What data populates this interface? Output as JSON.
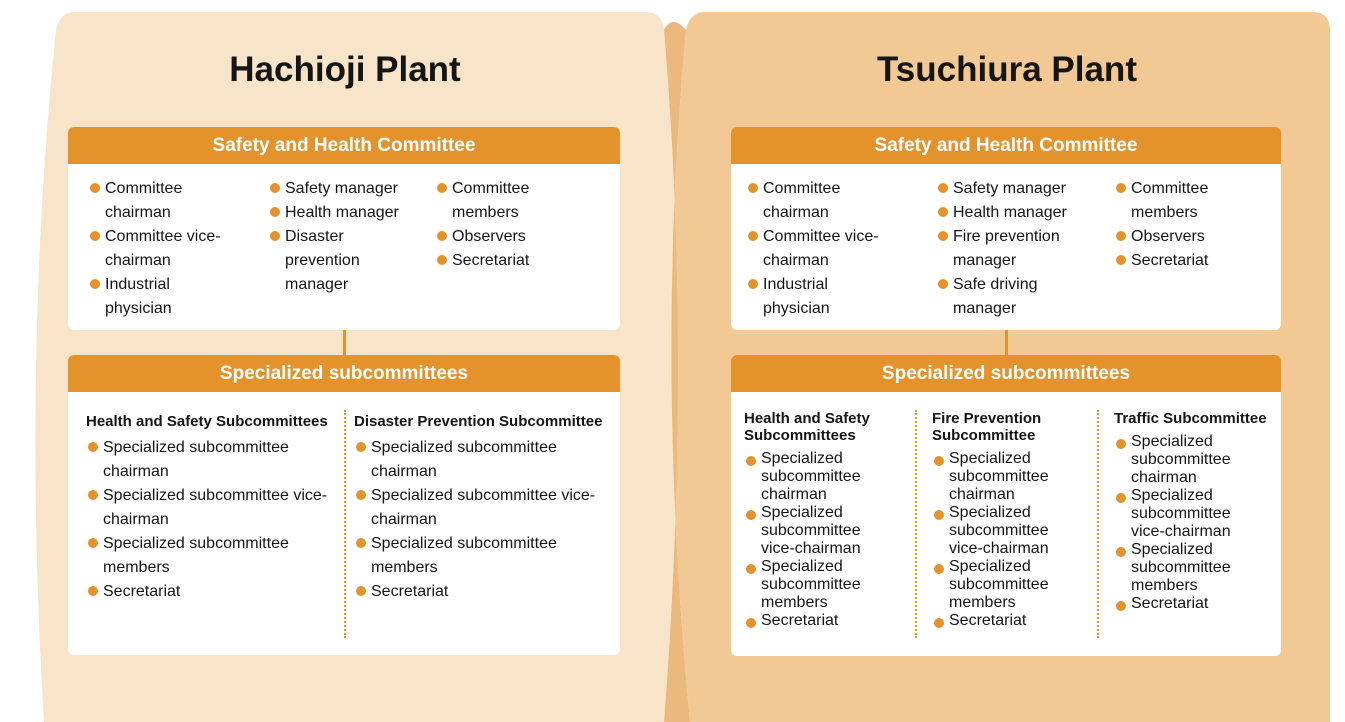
{
  "plants": [
    {
      "title": "Hachioji Plant",
      "committee": {
        "header": "Safety and Health Committee",
        "columns": [
          [
            "Committee chairman",
            "Committee vice-chairman",
            "Industrial physician"
          ],
          [
            "Safety manager",
            "Health manager",
            "Disaster prevention manager"
          ],
          [
            "Committee members",
            "Observers",
            "Secretariat"
          ]
        ]
      },
      "subcommittees": {
        "header": "Specialized subcommittees",
        "groups": [
          {
            "title": "Health and Safety Subcommittees",
            "items": [
              "Specialized subcommittee chairman",
              "Specialized subcommittee vice-chairman",
              "Specialized subcommittee members",
              "Secretariat"
            ]
          },
          {
            "title": "Disaster Prevention Subcommittee",
            "items": [
              "Specialized subcommittee chairman",
              "Specialized subcommittee vice-chairman",
              "Specialized subcommittee members",
              "Secretariat"
            ]
          }
        ]
      }
    },
    {
      "title": "Tsuchiura Plant",
      "committee": {
        "header": "Safety and Health Committee",
        "columns": [
          [
            "Committee chairman",
            "Committee vice-chairman",
            "Industrial physician"
          ],
          [
            "Safety manager",
            "Health manager",
            "Fire prevention manager",
            "Safe driving manager"
          ],
          [
            "Committee members",
            "Observers",
            "Secretariat"
          ]
        ]
      },
      "subcommittees": {
        "header": "Specialized subcommittees",
        "groups": [
          {
            "title": "Health and Safety Subcommittees",
            "items": [
              "Specialized subcommittee chairman",
              "Specialized subcommittee vice-chairman",
              "Specialized subcommittee members",
              "Secretariat"
            ]
          },
          {
            "title": "Fire Prevention Subcommittee",
            "items": [
              "Specialized subcommittee chairman",
              "Specialized subcommittee vice-chairman",
              "Specialized subcommittee members",
              "Secretariat"
            ]
          },
          {
            "title": "Traffic Subcommittee",
            "items": [
              "Specialized subcommittee chairman",
              "Specialized subcommittee vice-chairman",
              "Specialized subcommittee members",
              "Secretariat"
            ]
          }
        ]
      }
    }
  ]
}
